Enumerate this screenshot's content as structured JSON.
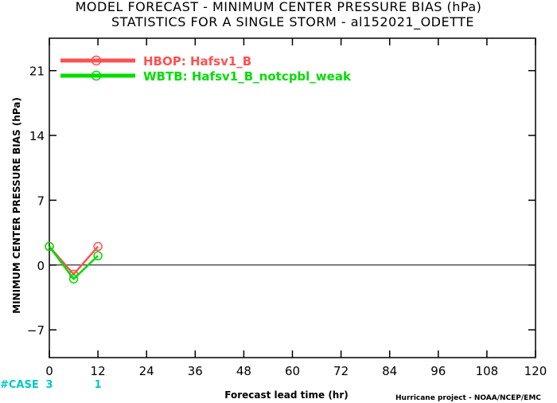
{
  "chart_data": {
    "type": "line",
    "title": "MODEL FORECAST - MINIMUM CENTER PRESSURE BIAS (hPa)",
    "subtitle": "STATISTICS FOR A SINGLE STORM - al152021_ODETTE",
    "xlabel": "Forecast lead time (hr)",
    "ylabel": "MINIMUM CENTER PRESSURE BIAS (hPa)",
    "xlim": [
      0,
      120
    ],
    "ylim": [
      -10,
      24.5
    ],
    "xticks": [
      0,
      12,
      24,
      36,
      48,
      60,
      72,
      84,
      96,
      108,
      120
    ],
    "yticks": [
      -7,
      0,
      7,
      14,
      21
    ],
    "zero_line": true,
    "legend_position": "top-left",
    "series": [
      {
        "name": "HBOP: Hafsv1_B",
        "color": "#ff5050",
        "x": [
          0,
          6,
          12
        ],
        "y": [
          2.0,
          -1.0,
          2.0
        ]
      },
      {
        "name": "WBTB: Hafsv1_B_notcpbl_weak",
        "color": "#00dd00",
        "x": [
          0,
          6,
          12
        ],
        "y": [
          2.0,
          -1.5,
          1.0
        ]
      }
    ],
    "case_counts": {
      "label": "#CASE",
      "x": [
        0,
        12
      ],
      "counts": [
        "3",
        "1"
      ],
      "color": "#00c8c8"
    }
  },
  "credit": "Hurricane project - NOAA/NCEP/EMC"
}
